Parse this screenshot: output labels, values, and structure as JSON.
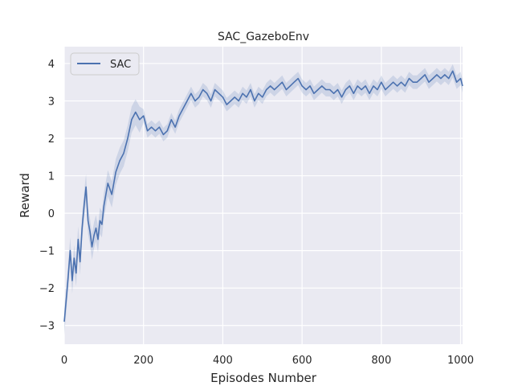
{
  "chart_data": {
    "type": "line",
    "title": "SAC_GazeboEnv",
    "xlabel": "Episodes Number",
    "ylabel": "Reward",
    "xlim": [
      0,
      1005
    ],
    "ylim": [
      -3.5,
      4.45
    ],
    "xticks": [
      0,
      200,
      400,
      600,
      800,
      1000
    ],
    "yticks": [
      -3,
      -2,
      -1,
      0,
      1,
      2,
      3,
      4
    ],
    "ytick_labels": [
      "−3",
      "−2",
      "−1",
      "0",
      "1",
      "2",
      "3",
      "4"
    ],
    "grid": true,
    "legend_position": "top-left",
    "background": "#eaeaf2",
    "series": [
      {
        "name": "SAC",
        "color": "#4c72b0",
        "band_color": "#4c72b0",
        "points": [
          [
            0,
            -2.9
          ],
          [
            5,
            -2.3
          ],
          [
            10,
            -1.7
          ],
          [
            15,
            -1.0
          ],
          [
            20,
            -1.8
          ],
          [
            25,
            -1.2
          ],
          [
            30,
            -1.6
          ],
          [
            35,
            -0.7
          ],
          [
            40,
            -1.3
          ],
          [
            45,
            -0.4
          ],
          [
            50,
            0.2
          ],
          [
            55,
            0.7
          ],
          [
            60,
            -0.2
          ],
          [
            65,
            -0.5
          ],
          [
            70,
            -0.9
          ],
          [
            75,
            -0.6
          ],
          [
            80,
            -0.4
          ],
          [
            85,
            -0.7
          ],
          [
            90,
            -0.2
          ],
          [
            95,
            -0.3
          ],
          [
            100,
            0.2
          ],
          [
            110,
            0.8
          ],
          [
            120,
            0.5
          ],
          [
            130,
            1.1
          ],
          [
            140,
            1.4
          ],
          [
            150,
            1.6
          ],
          [
            160,
            2.0
          ],
          [
            170,
            2.5
          ],
          [
            180,
            2.7
          ],
          [
            190,
            2.5
          ],
          [
            200,
            2.6
          ],
          [
            210,
            2.2
          ],
          [
            220,
            2.3
          ],
          [
            230,
            2.2
          ],
          [
            240,
            2.3
          ],
          [
            250,
            2.1
          ],
          [
            260,
            2.2
          ],
          [
            270,
            2.5
          ],
          [
            280,
            2.3
          ],
          [
            290,
            2.6
          ],
          [
            300,
            2.8
          ],
          [
            310,
            3.0
          ],
          [
            320,
            3.2
          ],
          [
            330,
            3.0
          ],
          [
            340,
            3.1
          ],
          [
            350,
            3.3
          ],
          [
            360,
            3.2
          ],
          [
            370,
            3.0
          ],
          [
            380,
            3.3
          ],
          [
            390,
            3.2
          ],
          [
            400,
            3.1
          ],
          [
            410,
            2.9
          ],
          [
            420,
            3.0
          ],
          [
            430,
            3.1
          ],
          [
            440,
            3.0
          ],
          [
            450,
            3.2
          ],
          [
            460,
            3.1
          ],
          [
            470,
            3.3
          ],
          [
            480,
            3.0
          ],
          [
            490,
            3.2
          ],
          [
            500,
            3.1
          ],
          [
            510,
            3.3
          ],
          [
            520,
            3.4
          ],
          [
            530,
            3.3
          ],
          [
            540,
            3.4
          ],
          [
            550,
            3.5
          ],
          [
            560,
            3.3
          ],
          [
            570,
            3.4
          ],
          [
            580,
            3.5
          ],
          [
            590,
            3.6
          ],
          [
            600,
            3.4
          ],
          [
            610,
            3.3
          ],
          [
            620,
            3.4
          ],
          [
            630,
            3.2
          ],
          [
            640,
            3.3
          ],
          [
            650,
            3.4
          ],
          [
            660,
            3.3
          ],
          [
            670,
            3.3
          ],
          [
            680,
            3.2
          ],
          [
            690,
            3.3
          ],
          [
            700,
            3.1
          ],
          [
            710,
            3.3
          ],
          [
            720,
            3.4
          ],
          [
            730,
            3.2
          ],
          [
            740,
            3.4
          ],
          [
            750,
            3.3
          ],
          [
            760,
            3.4
          ],
          [
            770,
            3.2
          ],
          [
            780,
            3.4
          ],
          [
            790,
            3.3
          ],
          [
            800,
            3.5
          ],
          [
            810,
            3.3
          ],
          [
            820,
            3.4
          ],
          [
            830,
            3.5
          ],
          [
            840,
            3.4
          ],
          [
            850,
            3.5
          ],
          [
            860,
            3.4
          ],
          [
            870,
            3.6
          ],
          [
            880,
            3.5
          ],
          [
            890,
            3.5
          ],
          [
            900,
            3.6
          ],
          [
            910,
            3.7
          ],
          [
            920,
            3.5
          ],
          [
            930,
            3.6
          ],
          [
            940,
            3.7
          ],
          [
            950,
            3.6
          ],
          [
            960,
            3.7
          ],
          [
            970,
            3.6
          ],
          [
            980,
            3.8
          ],
          [
            990,
            3.5
          ],
          [
            1000,
            3.6
          ],
          [
            1005,
            3.4
          ]
        ]
      }
    ]
  }
}
